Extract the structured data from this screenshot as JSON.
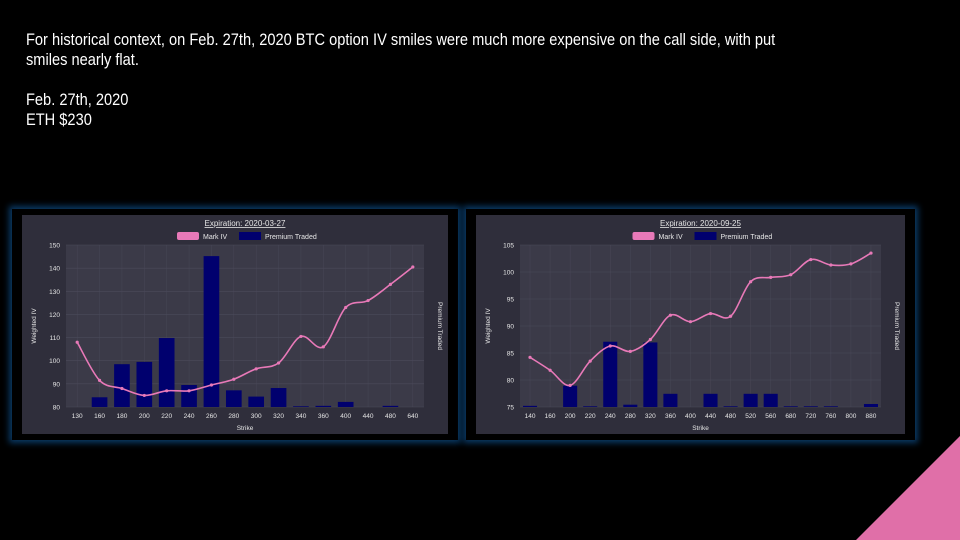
{
  "slide": {
    "intro": "For historical context, on Feb. 27th, 2020 BTC option IV smiles were much more expensive on the call side, with put smiles nearly flat.",
    "date": "Feb. 27th, 2020",
    "price": "ETH $230"
  },
  "colors": {
    "mark_iv": "#e879b8",
    "premium": "#00006e",
    "plot_bg": "#3b3a48",
    "frame_bg": "#2f2e3b",
    "text": "#e6e6e6",
    "grid": "#4b4a5a"
  },
  "chart_data": [
    {
      "type": "bar",
      "title": "Expiration: 2020-03-27",
      "xlabel": "Strike",
      "ylabel": "Weighted IV",
      "y2label": "Premium Traded",
      "legend": [
        "Mark IV",
        "Premium Traded"
      ],
      "legend_position": "top",
      "categories": [
        "130",
        "160",
        "180",
        "200",
        "220",
        "240",
        "260",
        "280",
        "300",
        "320",
        "340",
        "360",
        "400",
        "440",
        "480",
        "640"
      ],
      "ylim": [
        80,
        150
      ],
      "yticks": [
        80,
        90,
        100,
        110,
        120,
        130,
        140,
        150
      ],
      "series": [
        {
          "name": "Mark IV",
          "kind": "line",
          "values": [
            108,
            91.5,
            88,
            85,
            87,
            87,
            89.5,
            92,
            96.5,
            99,
            110.5,
            106,
            123,
            126,
            133,
            140.5
          ]
        },
        {
          "name": "Premium Traded",
          "kind": "bar",
          "values": [
            0,
            4.2,
            18.5,
            19.5,
            29.8,
            9.5,
            65.2,
            7.2,
            4.5,
            8.2,
            0.3,
            0.5,
            2.2,
            0,
            0.5,
            0
          ]
        }
      ]
    },
    {
      "type": "bar",
      "title": "Expiration: 2020-09-25",
      "xlabel": "Strike",
      "ylabel": "Weighted IV",
      "y2label": "Premium Traded",
      "legend": [
        "Mark IV",
        "Premium Traded"
      ],
      "legend_position": "top",
      "categories": [
        "140",
        "160",
        "200",
        "220",
        "240",
        "280",
        "320",
        "360",
        "400",
        "440",
        "480",
        "520",
        "560",
        "680",
        "720",
        "760",
        "800",
        "880"
      ],
      "ylim": [
        75,
        105
      ],
      "yticks": [
        75,
        80,
        85,
        90,
        95,
        100,
        105
      ],
      "series": [
        {
          "name": "Mark IV",
          "kind": "line",
          "values": [
            84.2,
            81.8,
            79,
            83.5,
            86.3,
            85.3,
            87.5,
            92,
            90.8,
            92.3,
            91.8,
            98.2,
            99,
            99.5,
            102.3,
            101.3,
            101.5,
            103.5
          ]
        },
        {
          "name": "Premium Traded",
          "kind": "bar",
          "values": [
            0.5,
            0,
            9.2,
            0.3,
            28.2,
            1,
            27.9,
            5.7,
            0,
            5.7,
            0.3,
            5.7,
            5.7,
            0.3,
            0.3,
            0.3,
            0,
            1.3
          ]
        }
      ]
    }
  ]
}
